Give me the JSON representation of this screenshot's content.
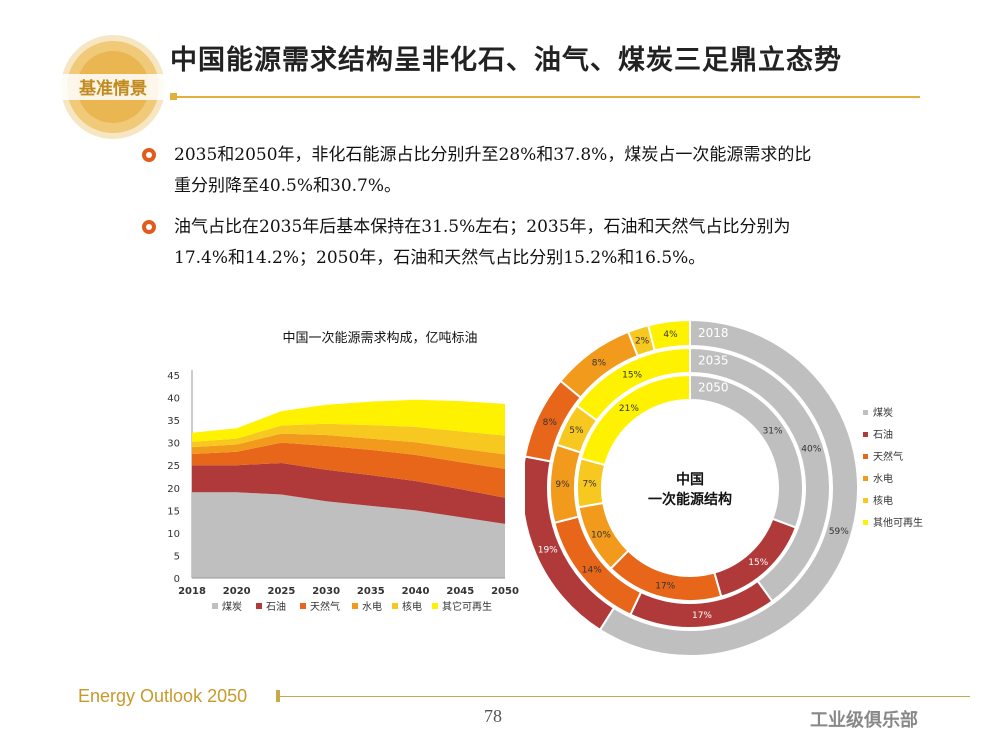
{
  "logo": {
    "text": "基准情景"
  },
  "title": "中国能源需求结构呈非化石、油气、煤炭三足鼎立态势",
  "bullets": [
    {
      "line1": "2035和2050年，非化石能源占比分别升至28%和37.8%，煤炭占一次能源需求的比",
      "line2": "重分别降至40.5%和30.7%。"
    },
    {
      "line1": "油气占比在2035年后基本保持在31.5%左右；2035年，石油和天然气占比分别为",
      "line2": "17.4%和14.2%；2050年，石油和天然气占比分别15.2%和16.5%。"
    }
  ],
  "footer": {
    "report": "Energy Outlook 2050",
    "page": "78",
    "brand": "工业级俱乐部"
  },
  "colors": {
    "coal": "#bfbfbf",
    "oil": "#b03a3a",
    "gas": "#e8661a",
    "hydro": "#f29a1c",
    "nuclear": "#f7c81f",
    "renewable": "#fff200"
  },
  "chart_data": [
    {
      "type": "area",
      "title": "中国一次能源需求构成，亿吨标油",
      "x": [
        "2018",
        "2020",
        "2025",
        "2030",
        "2035",
        "2040",
        "2045",
        "2050"
      ],
      "ylim": [
        0,
        45
      ],
      "yticks": [
        0,
        5,
        10,
        15,
        20,
        25,
        30,
        35,
        40,
        45
      ],
      "series": [
        {
          "name": "煤炭",
          "values": [
            19.0,
            19.0,
            18.5,
            17.0,
            16.0,
            15.0,
            13.5,
            12.0
          ]
        },
        {
          "name": "石油",
          "values": [
            6.0,
            6.0,
            7.0,
            7.0,
            6.8,
            6.5,
            6.2,
            5.8
          ]
        },
        {
          "name": "天然气",
          "values": [
            2.5,
            3.0,
            4.5,
            5.3,
            5.6,
            5.8,
            6.0,
            6.4
          ]
        },
        {
          "name": "水电",
          "values": [
            1.5,
            1.6,
            2.0,
            2.4,
            2.5,
            2.8,
            3.0,
            3.2
          ]
        },
        {
          "name": "核电",
          "values": [
            1.2,
            1.3,
            1.8,
            2.5,
            3.0,
            3.4,
            3.8,
            4.2
          ]
        },
        {
          "name": "其它可再生",
          "values": [
            2.0,
            2.3,
            3.2,
            4.2,
            5.2,
            6.0,
            6.7,
            7.0
          ]
        }
      ],
      "legend": [
        "煤炭",
        "石油",
        "天然气",
        "水电",
        "核电",
        "其它可再生"
      ]
    },
    {
      "type": "pie",
      "subtype": "nested-donut",
      "center_label": [
        "中国",
        "一次能源结构"
      ],
      "ring_labels": [
        "2018",
        "2035",
        "2050"
      ],
      "legend": [
        "煤炭",
        "石油",
        "天然气",
        "水电",
        "核电",
        "其他可再生"
      ],
      "rings": [
        {
          "year": "2018",
          "values": [
            59,
            19,
            8,
            8,
            2,
            4
          ],
          "labels": [
            "59%",
            "19%",
            "8%",
            "8%",
            "2%",
            "4%"
          ]
        },
        {
          "year": "2035",
          "values": [
            40,
            17,
            14,
            9,
            5,
            15
          ],
          "labels": [
            "40%",
            "17%",
            "14%",
            "9%",
            "5%",
            "15%"
          ]
        },
        {
          "year": "2050",
          "values": [
            31,
            15,
            17,
            10,
            7,
            21
          ],
          "labels": [
            "31%",
            "15%",
            "17%",
            "10%",
            "7%",
            "21%"
          ]
        }
      ]
    }
  ]
}
